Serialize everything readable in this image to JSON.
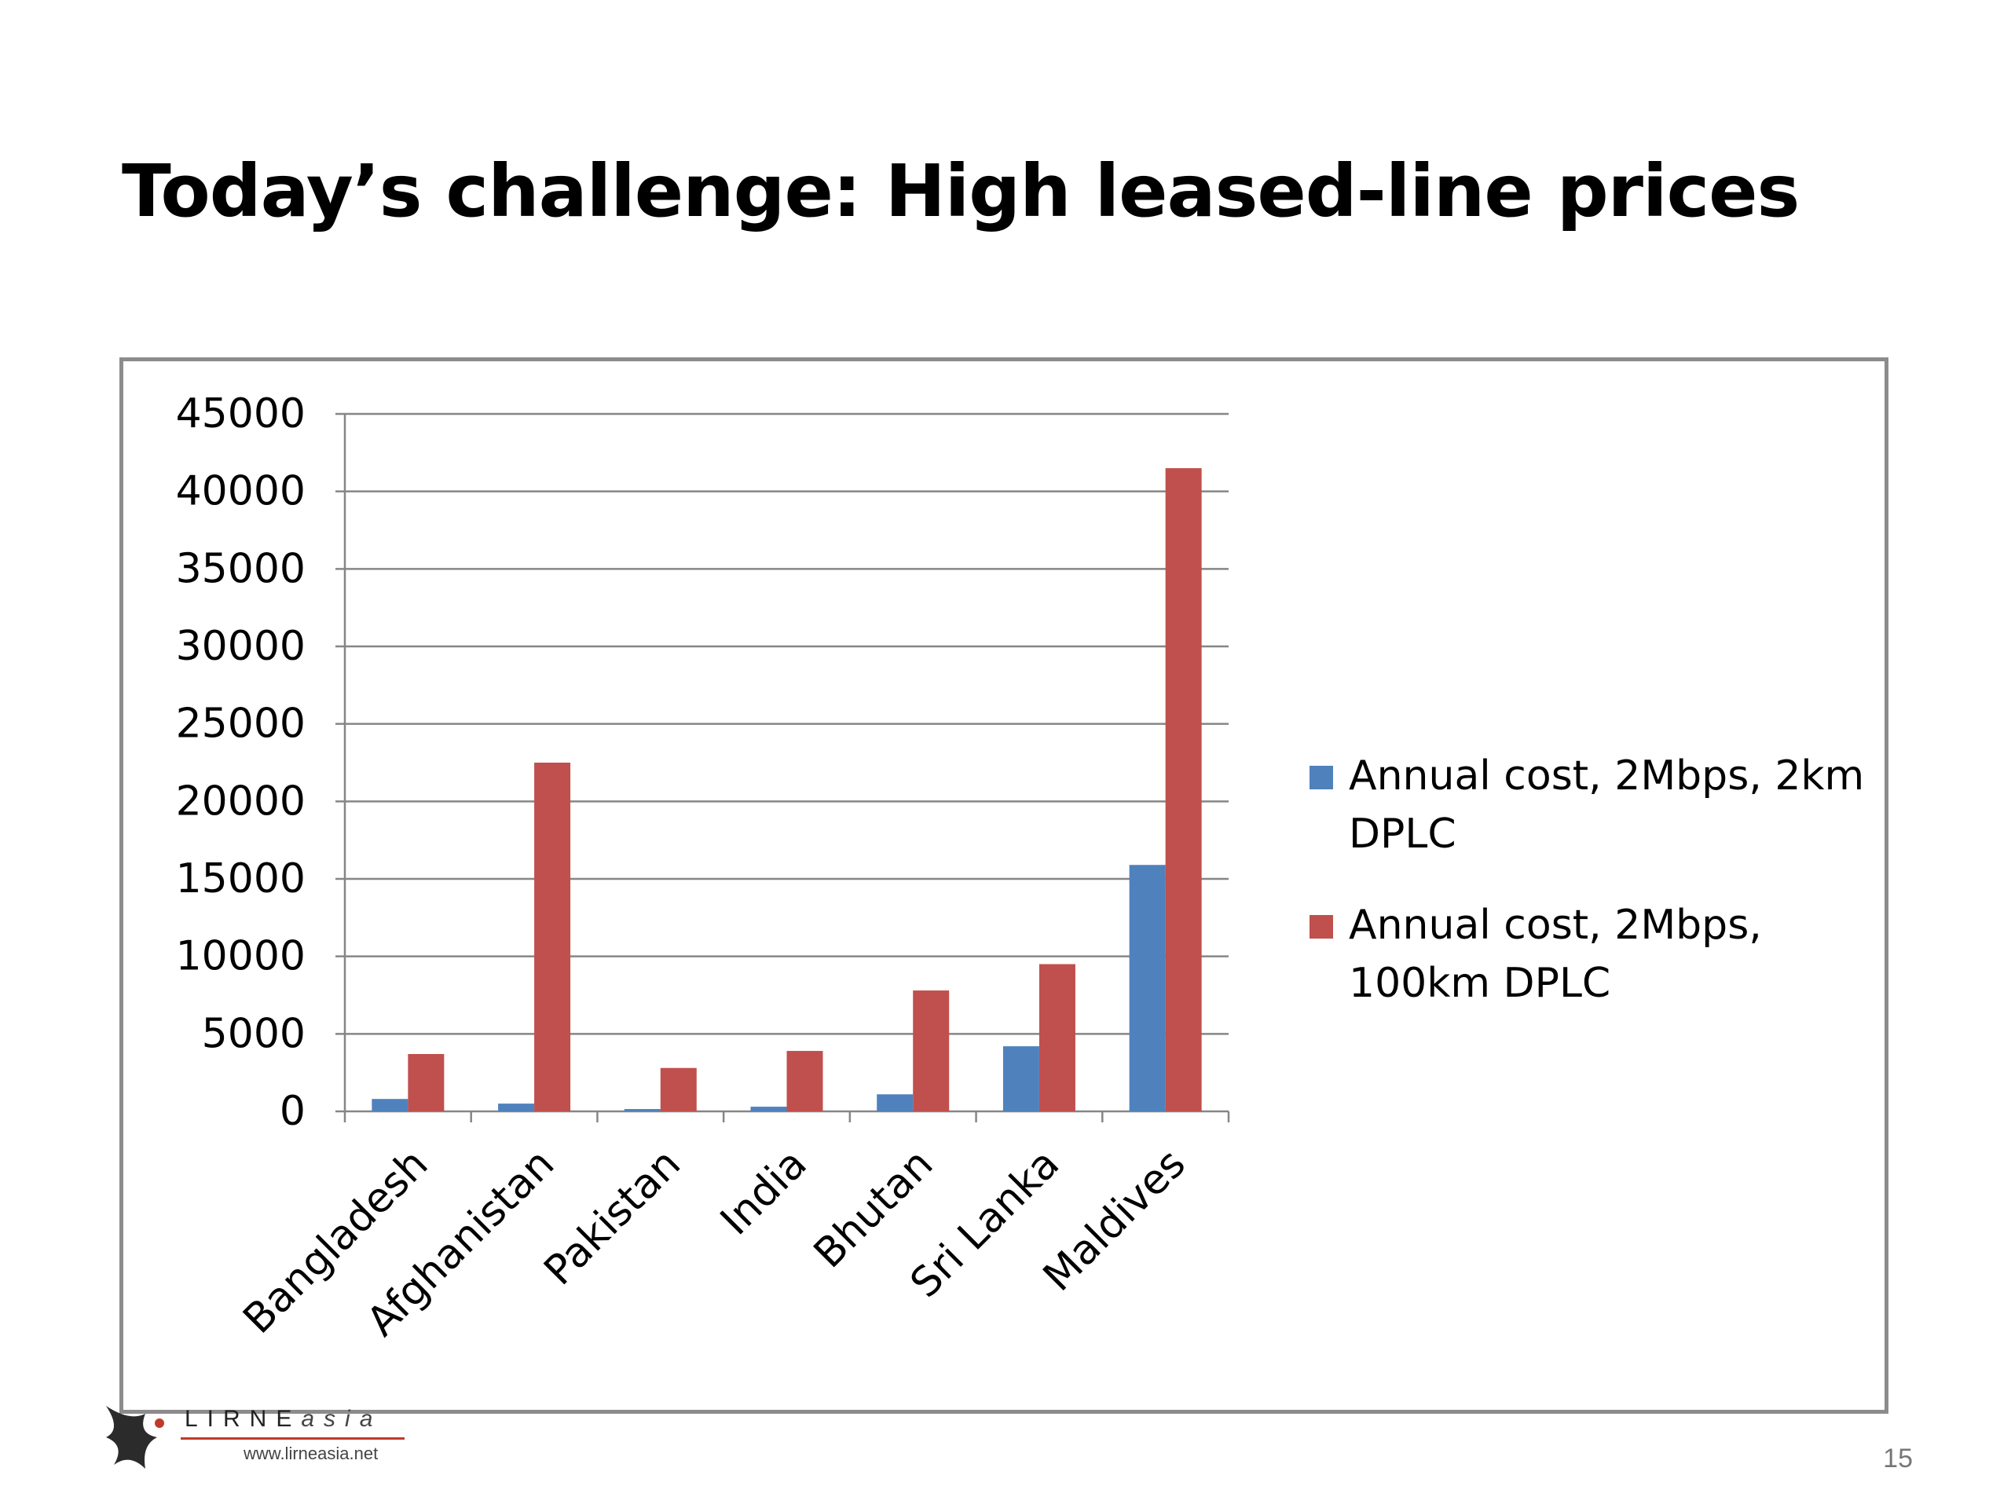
{
  "slide": {
    "title": "Today’s challenge: High leased-line prices",
    "page_number": "15"
  },
  "logo": {
    "name_main": "LIRNE",
    "name_sub": "asia",
    "url": "www.lirneasia.net"
  },
  "colors": {
    "series_blue": "#4f81bd",
    "series_red": "#c0504d",
    "gridline": "#868686",
    "frame": "#8c8c8c"
  },
  "chart_data": {
    "type": "bar",
    "title": "",
    "xlabel": "",
    "ylabel": "",
    "ylim": [
      0,
      45000
    ],
    "yticks": [
      0,
      5000,
      10000,
      15000,
      20000,
      25000,
      30000,
      35000,
      40000,
      45000
    ],
    "grid": true,
    "legend_position": "right",
    "categories": [
      "Bangladesh",
      "Afghanistan",
      "Pakistan",
      "India",
      "Bhutan",
      "Sri Lanka",
      "Maldives"
    ],
    "series": [
      {
        "name": "Annual cost, 2Mbps, 2km DPLC",
        "legend_lines": [
          "Annual cost, 2Mbps, 2km",
          "DPLC"
        ],
        "color": "#4f81bd",
        "values": [
          800,
          500,
          150,
          300,
          1100,
          4200,
          15900
        ]
      },
      {
        "name": "Annual cost, 2Mbps, 100km DPLC",
        "legend_lines": [
          "Annual cost, 2Mbps,",
          "100km DPLC"
        ],
        "color": "#c0504d",
        "values": [
          3700,
          22500,
          2800,
          3900,
          7800,
          9500,
          41500
        ]
      }
    ]
  }
}
